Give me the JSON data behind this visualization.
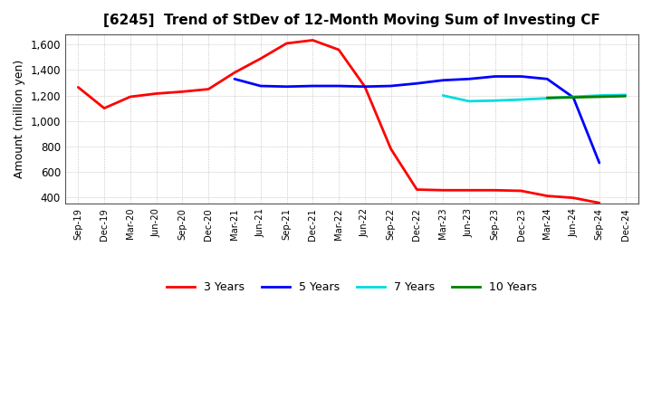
{
  "title": "[6245]  Trend of StDev of 12-Month Moving Sum of Investing CF",
  "ylabel": "Amount (million yen)",
  "bg_color": "#ffffff",
  "plot_bg_color": "#ffffff",
  "grid_color": "#999999",
  "ylim": [
    350,
    1680
  ],
  "yticks": [
    400,
    600,
    800,
    1000,
    1200,
    1400,
    1600
  ],
  "x_labels": [
    "Sep-19",
    "Dec-19",
    "Mar-20",
    "Jun-20",
    "Sep-20",
    "Dec-20",
    "Mar-21",
    "Jun-21",
    "Sep-21",
    "Dec-21",
    "Mar-22",
    "Jun-22",
    "Sep-22",
    "Dec-22",
    "Mar-23",
    "Jun-23",
    "Sep-23",
    "Dec-23",
    "Mar-24",
    "Jun-24",
    "Sep-24",
    "Dec-24"
  ],
  "series": [
    {
      "label": "3 Years",
      "color": "#ff0000",
      "linewidth": 2.0,
      "data_x": [
        0,
        1,
        2,
        3,
        4,
        5,
        6,
        7,
        8,
        9,
        10,
        11,
        12,
        13,
        14,
        15,
        16,
        17,
        18,
        19,
        20
      ],
      "data_y": [
        1265,
        1100,
        1190,
        1215,
        1230,
        1250,
        1380,
        1490,
        1610,
        1635,
        1560,
        1270,
        780,
        460,
        455,
        455,
        455,
        450,
        410,
        395,
        355
      ]
    },
    {
      "label": "5 Years",
      "color": "#0000ff",
      "linewidth": 2.0,
      "data_x": [
        6,
        7,
        8,
        9,
        10,
        11,
        12,
        13,
        14,
        15,
        16,
        17,
        18,
        19,
        20
      ],
      "data_y": [
        1330,
        1275,
        1270,
        1275,
        1275,
        1270,
        1275,
        1295,
        1320,
        1330,
        1350,
        1350,
        1330,
        1185,
        670
      ]
    },
    {
      "label": "7 Years",
      "color": "#00dddd",
      "linewidth": 2.0,
      "data_x": [
        14,
        15,
        16,
        17,
        18,
        19,
        20,
        21
      ],
      "data_y": [
        1200,
        1155,
        1160,
        1168,
        1178,
        1190,
        1200,
        1205
      ]
    },
    {
      "label": "10 Years",
      "color": "#008000",
      "linewidth": 2.0,
      "data_x": [
        18,
        19,
        20,
        21
      ],
      "data_y": [
        1182,
        1185,
        1190,
        1195
      ]
    }
  ],
  "legend_colors": [
    "#ff0000",
    "#0000ff",
    "#00dddd",
    "#008000"
  ],
  "legend_labels": [
    "3 Years",
    "5 Years",
    "7 Years",
    "10 Years"
  ]
}
